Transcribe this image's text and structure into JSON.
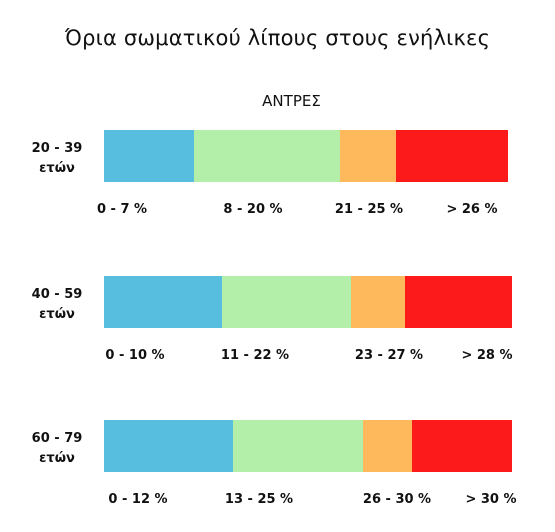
{
  "title": "Όρια σωματικού λίπους στους ενήλικες",
  "subtitle": "ΑΝΤΡΕΣ",
  "colors": {
    "very_low": "#58bee0",
    "normal": "#b3efa8",
    "high": "#fdb95b",
    "very_high": "#fd1a1a"
  },
  "chart_data": {
    "type": "bar",
    "title": "Όρια σωματικού λίπους στους ενήλικες",
    "subtitle": "ΑΝΤΡΕΣ",
    "groups": [
      {
        "age_line1": "20 - 39",
        "age_line2": "ετών",
        "ranges": [
          "0 - 7 %",
          "8 - 20  %",
          "21 - 25  %",
          "> 26 %"
        ],
        "bounds": [
          0,
          8,
          21,
          26,
          36
        ]
      },
      {
        "age_line1": "40 - 59",
        "age_line2": "ετών",
        "ranges": [
          "0 - 10 %",
          "11 - 22 %",
          "23 - 27  %",
          "> 28 %"
        ],
        "bounds": [
          0,
          11,
          23,
          28,
          38
        ]
      },
      {
        "age_line1": "60 - 79",
        "age_line2": "ετών",
        "ranges": [
          "0 - 12 %",
          "13 - 25  %",
          "26 - 30 %",
          "> 30 %"
        ],
        "bounds": [
          0,
          13,
          26,
          31,
          41
        ]
      }
    ]
  }
}
